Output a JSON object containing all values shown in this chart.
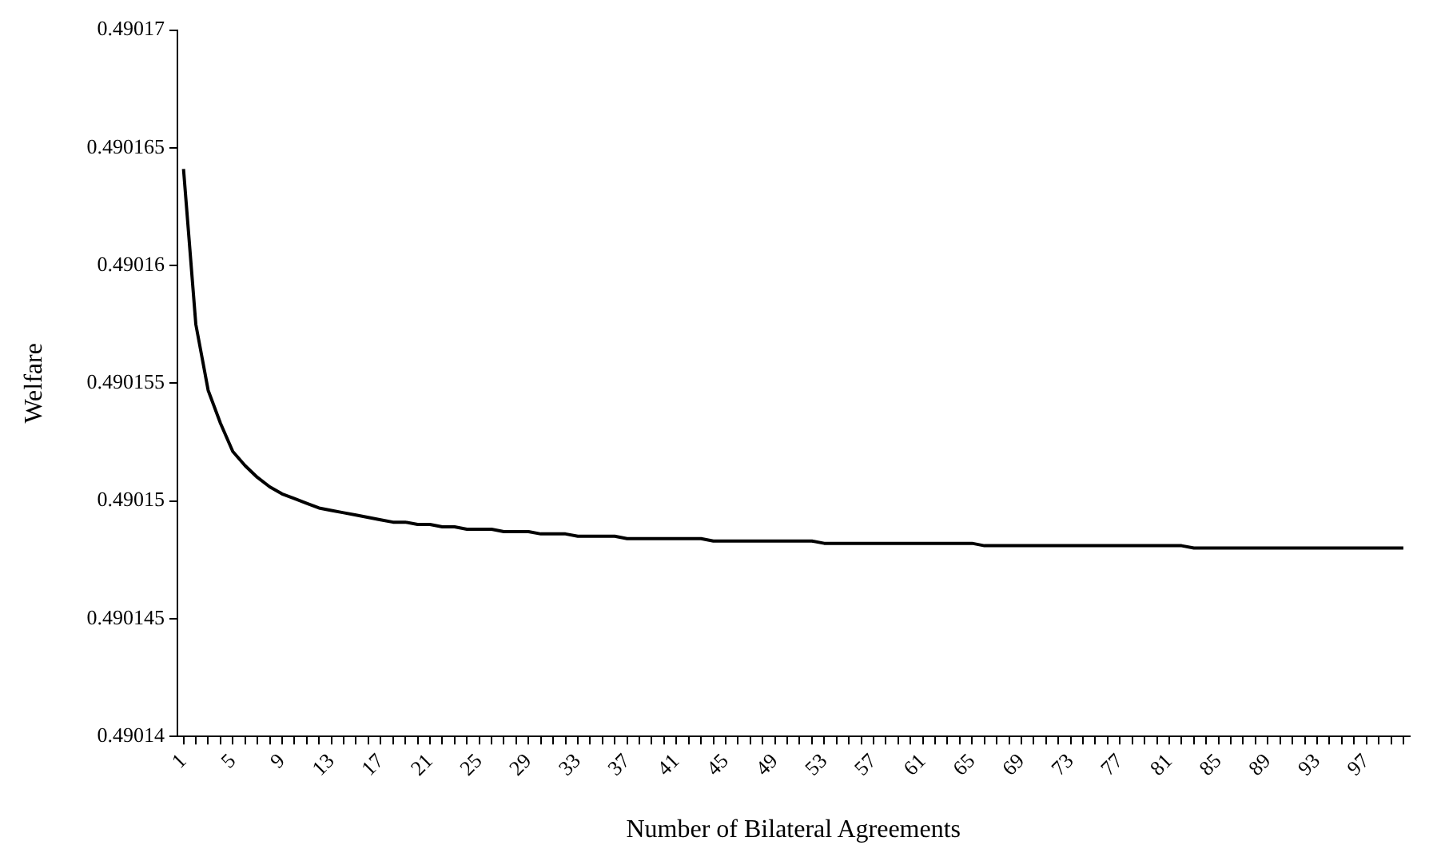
{
  "chart_data": {
    "type": "line",
    "xlabel": "Number of Bilateral Agreements",
    "ylabel": "Welfare",
    "categories": [
      "1",
      null,
      null,
      null,
      "5",
      null,
      null,
      null,
      "9",
      null,
      null,
      null,
      "13",
      null,
      null,
      null,
      "17",
      null,
      null,
      null,
      "21",
      null,
      null,
      null,
      "25",
      null,
      null,
      null,
      "29",
      null,
      null,
      null,
      "33",
      null,
      null,
      null,
      "37",
      null,
      null,
      null,
      "41",
      null,
      null,
      null,
      "45",
      null,
      null,
      null,
      "49",
      null,
      null,
      null,
      "53",
      null,
      null,
      null,
      "57",
      null,
      null,
      null,
      "61",
      null,
      null,
      null,
      "65",
      null,
      null,
      null,
      "69",
      null,
      null,
      null,
      "73",
      null,
      null,
      null,
      "77",
      null,
      null,
      null,
      "81",
      null,
      null,
      null,
      "85",
      null,
      null,
      null,
      "89",
      null,
      null,
      null,
      "93",
      null,
      null,
      null,
      "97",
      null,
      null,
      null
    ],
    "series": [
      {
        "color": "#000000",
        "values": [
          0.4901641,
          0.4901575,
          0.4901547,
          0.4901533,
          0.4901521,
          0.4901515,
          0.490151,
          0.4901506,
          0.4901503,
          0.4901501,
          0.4901499,
          0.4901497,
          0.4901496,
          0.4901495,
          0.4901494,
          0.4901493,
          0.4901492,
          0.4901491,
          0.4901491,
          0.490149,
          0.490149,
          0.4901489,
          0.4901489,
          0.4901488,
          0.4901488,
          0.4901488,
          0.4901487,
          0.4901487,
          0.4901487,
          0.4901486,
          0.4901486,
          0.4901486,
          0.4901485,
          0.4901485,
          0.4901485,
          0.4901485,
          0.4901484,
          0.4901484,
          0.4901484,
          0.4901484,
          0.4901484,
          0.4901484,
          0.4901484,
          0.4901483,
          0.4901483,
          0.4901483,
          0.4901483,
          0.4901483,
          0.4901483,
          0.4901483,
          0.4901483,
          0.4901483,
          0.4901482,
          0.4901482,
          0.4901482,
          0.4901482,
          0.4901482,
          0.4901482,
          0.4901482,
          0.4901482,
          0.4901482,
          0.4901482,
          0.4901482,
          0.4901482,
          0.4901482,
          0.4901481,
          0.4901481,
          0.4901481,
          0.4901481,
          0.4901481,
          0.4901481,
          0.4901481,
          0.4901481,
          0.4901481,
          0.4901481,
          0.4901481,
          0.4901481,
          0.4901481,
          0.4901481,
          0.4901481,
          0.4901481,
          0.4901481,
          0.490148,
          0.490148,
          0.490148,
          0.490148,
          0.490148,
          0.490148,
          0.490148,
          0.490148,
          0.490148,
          0.490148,
          0.490148,
          0.490148,
          0.490148,
          0.490148,
          0.490148,
          0.490148,
          0.490148,
          0.490148
        ]
      }
    ],
    "ylim": [
      0.49014,
      0.49017
    ],
    "yticks": [
      0.49014,
      0.490145,
      0.49015,
      0.490155,
      0.49016,
      0.490165,
      0.49017
    ],
    "grid": false,
    "legend": false,
    "marker": "none",
    "line_style": "solid"
  }
}
